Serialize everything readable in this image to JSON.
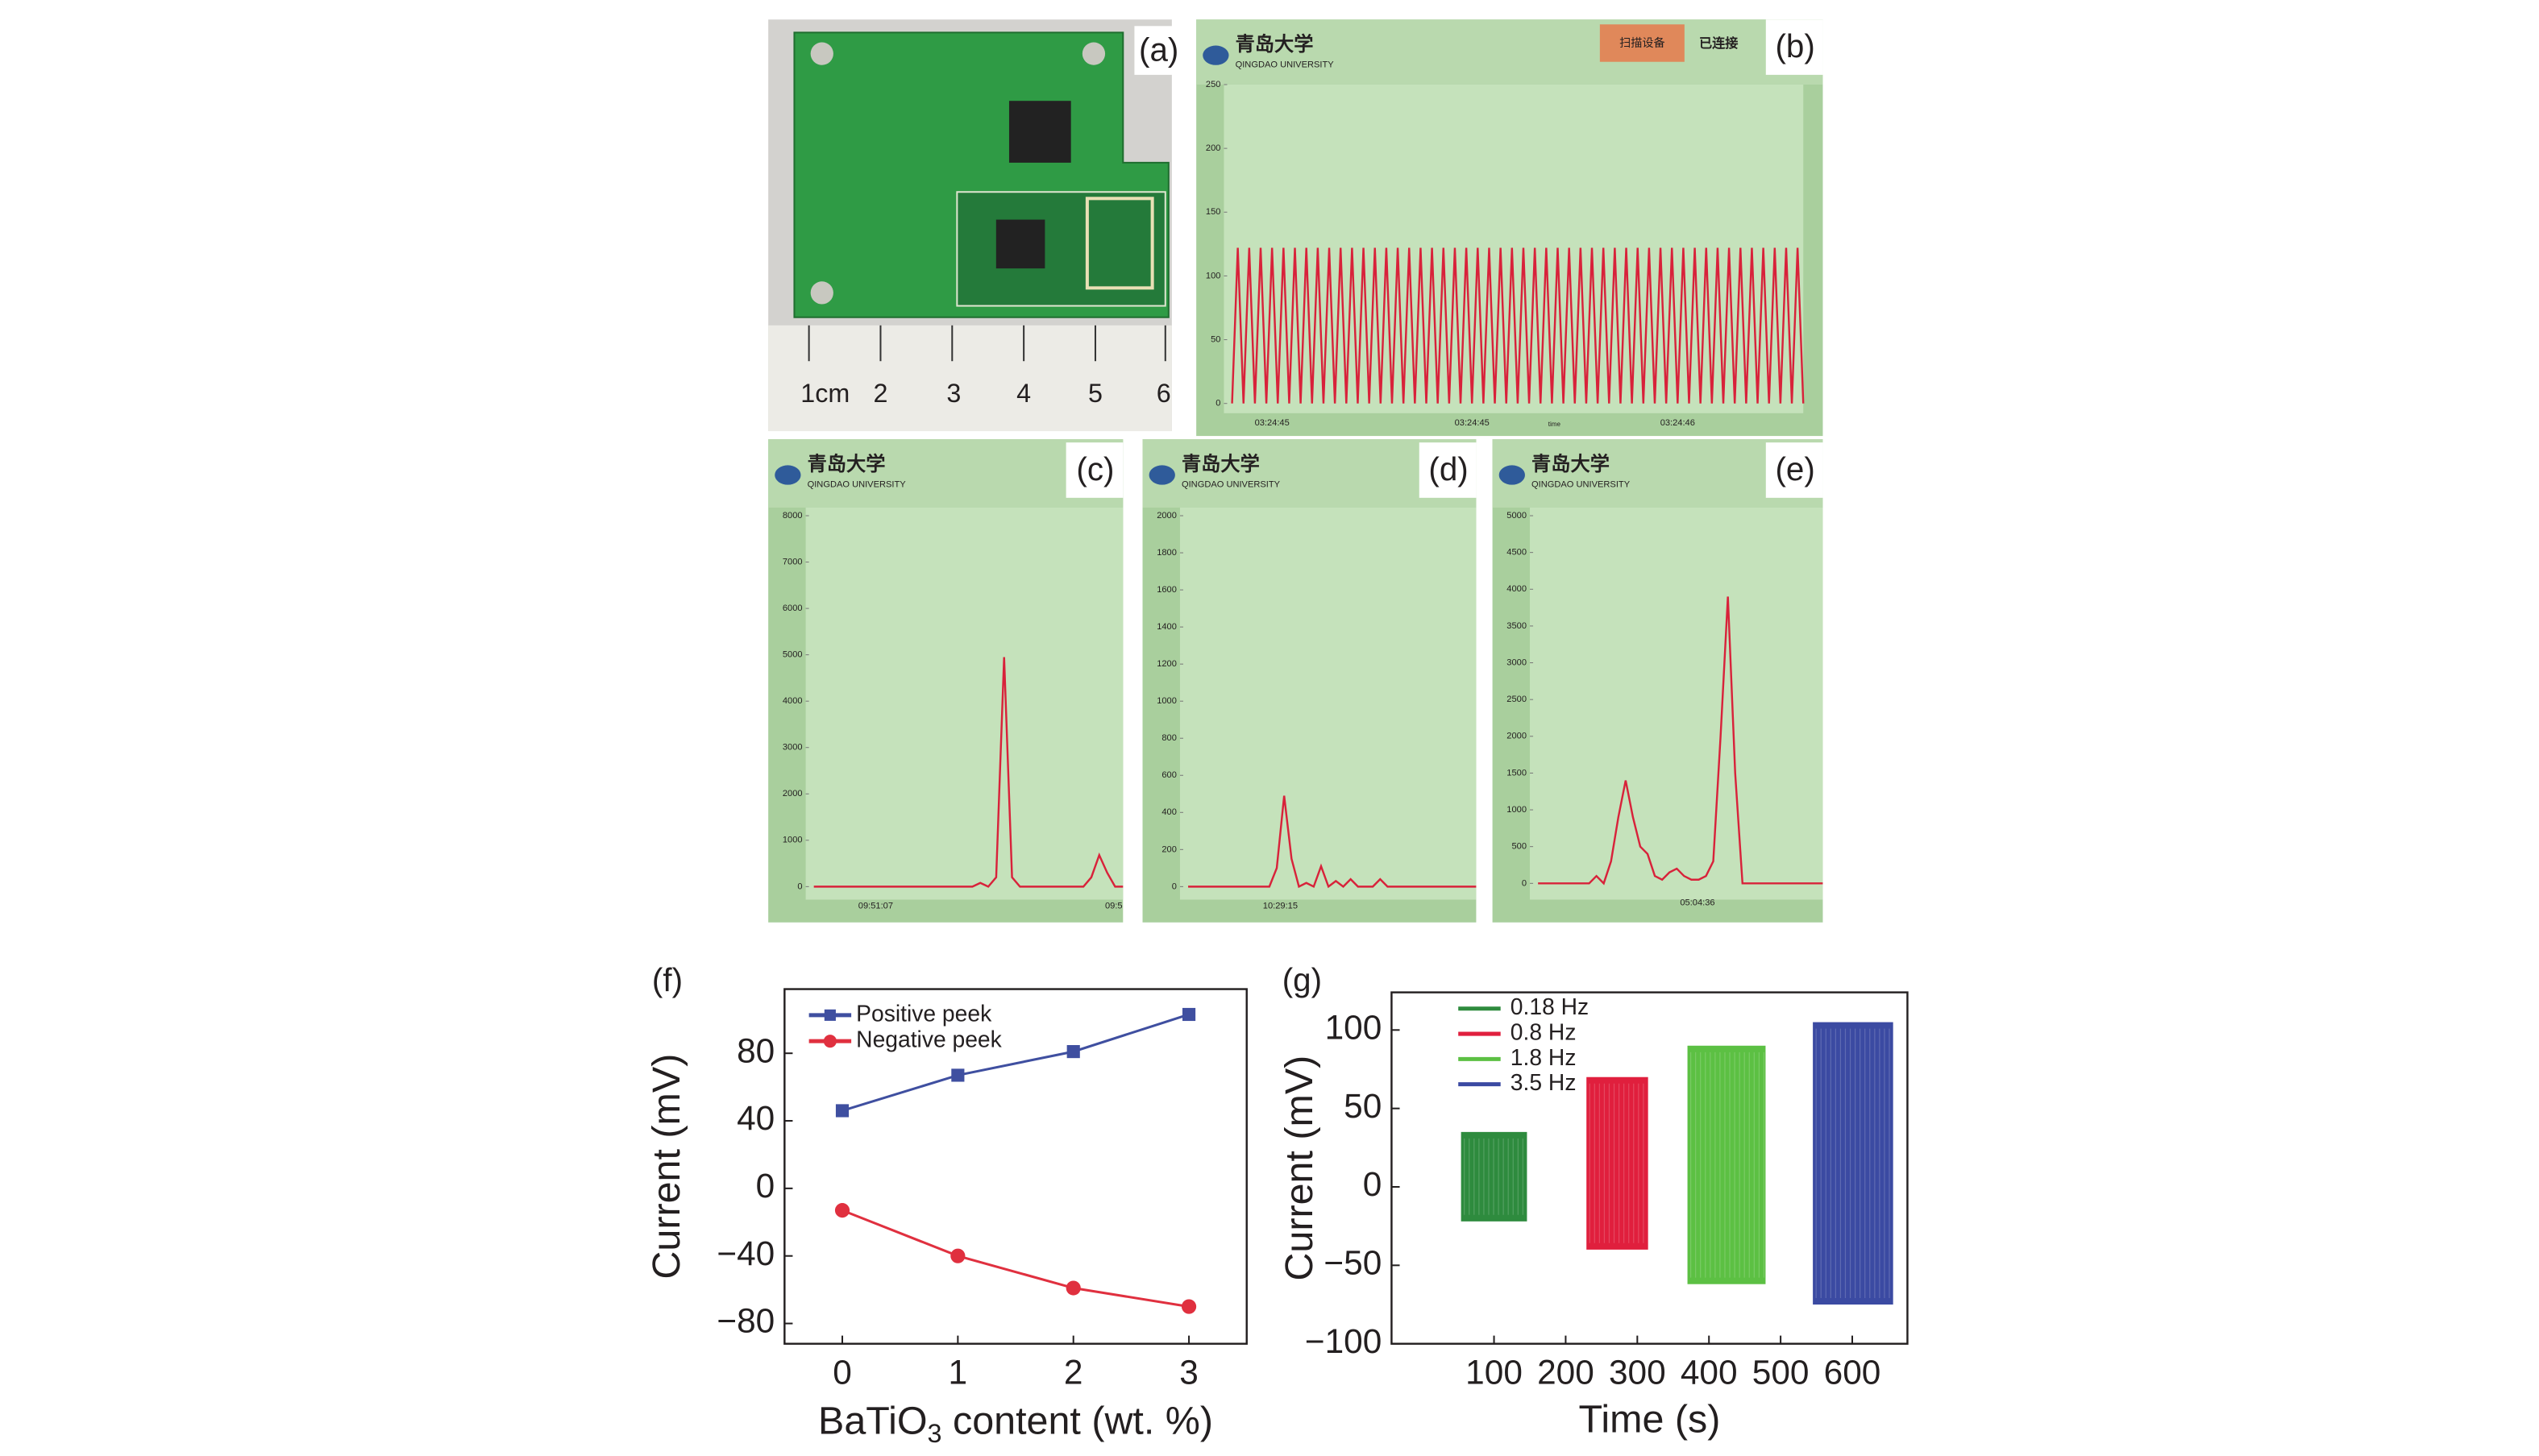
{
  "photo": {
    "panel_label": "(a)",
    "ruler_labels": [
      "1cm",
      "2",
      "3",
      "4",
      "5",
      "6"
    ]
  },
  "app": {
    "logo_cn": "青岛大学",
    "logo_en": "QINGDAO UNIVERSITY",
    "button": "扫描设备",
    "status": "已连接"
  },
  "chart_data": [
    {
      "type": "app-line",
      "panel_label": "(b)",
      "color": "#d8223a",
      "ylim": [
        0,
        250
      ],
      "yticks": [
        0,
        50,
        100,
        150,
        200,
        250
      ],
      "xlabels": [
        "03:24:45",
        "03:24:45",
        "03:24:46"
      ],
      "xlabel": "time",
      "values": [
        0,
        122,
        0,
        122,
        0,
        122,
        0,
        122,
        0,
        122,
        0,
        122,
        0,
        122,
        0,
        122,
        0,
        122,
        0,
        122,
        0,
        122,
        0,
        122,
        0,
        122,
        0,
        122,
        0,
        122,
        0,
        122,
        0,
        122,
        0,
        122,
        0,
        122,
        0,
        122,
        0,
        122,
        0,
        122,
        0,
        122,
        0,
        122,
        0,
        122,
        0,
        122,
        0,
        122,
        0,
        122,
        0,
        122,
        0,
        122,
        0,
        122,
        0,
        122,
        0,
        122,
        0,
        122,
        0,
        122,
        0,
        122,
        0,
        122,
        0,
        122,
        0,
        122,
        0,
        122,
        0,
        122,
        0,
        122,
        0,
        122,
        0,
        122,
        0,
        122,
        0,
        122,
        0,
        122,
        0,
        122,
        0,
        122,
        0,
        122,
        0
      ]
    },
    {
      "type": "app-line",
      "panel_label": "(c)",
      "color": "#d8223a",
      "ylim": [
        0,
        8000
      ],
      "yticks": [
        0,
        1000,
        2000,
        3000,
        4000,
        5000,
        6000,
        7000,
        8000
      ],
      "xlabels": [
        "09:51:07",
        "09:5"
      ],
      "values": [
        0,
        0,
        0,
        0,
        0,
        0,
        0,
        0,
        0,
        0,
        0,
        0,
        0,
        0,
        0,
        0,
        0,
        0,
        0,
        0,
        0,
        80,
        0,
        200,
        4950,
        200,
        0,
        0,
        0,
        0,
        0,
        0,
        0,
        0,
        0,
        200,
        680,
        300,
        0,
        0
      ]
    },
    {
      "type": "app-line",
      "panel_label": "(d)",
      "color": "#d8223a",
      "ylim": [
        0,
        2000
      ],
      "yticks": [
        0,
        200,
        400,
        600,
        800,
        1000,
        1200,
        1400,
        1600,
        1800,
        2000
      ],
      "xlabels": [
        "10:29:15"
      ],
      "values": [
        0,
        0,
        0,
        0,
        0,
        0,
        0,
        0,
        0,
        0,
        0,
        0,
        100,
        490,
        150,
        0,
        20,
        0,
        110,
        0,
        30,
        0,
        40,
        0,
        0,
        0,
        40,
        0,
        0,
        0,
        0,
        0,
        0,
        0,
        0,
        0,
        0,
        0,
        0,
        0
      ]
    },
    {
      "type": "app-line",
      "panel_label": "(e)",
      "color": "#d8223a",
      "ylim": [
        0,
        5000
      ],
      "yticks": [
        0,
        500,
        1000,
        1500,
        2000,
        2500,
        3000,
        3500,
        4000,
        4500,
        5000
      ],
      "xlabels": [
        "05:04:36"
      ],
      "values": [
        0,
        0,
        0,
        0,
        0,
        0,
        0,
        0,
        100,
        0,
        300,
        900,
        1400,
        900,
        500,
        400,
        100,
        50,
        150,
        200,
        100,
        50,
        50,
        100,
        300,
        2000,
        3900,
        1500,
        0,
        0,
        0,
        0,
        0,
        0,
        0,
        0,
        0,
        0,
        0,
        0
      ]
    },
    {
      "type": "line",
      "panel_label": "(f)",
      "x": [
        0,
        1,
        2,
        3
      ],
      "xlabel": {
        "text": "BaTiO",
        "subscript": "3",
        "rest": " content (wt. %)"
      },
      "ylabel": "Current (mV)",
      "xlim": [
        -0.5,
        3.5
      ],
      "xticks": [
        0,
        1,
        2,
        3
      ],
      "ylim": [
        -92,
        118
      ],
      "yticks": [
        {
          "value": -80,
          "label": "−80"
        },
        {
          "value": -40,
          "label": "−40"
        },
        0,
        40,
        80
      ],
      "series": [
        {
          "name": "Positive peek",
          "color": "#3f4fa0",
          "marker": "square",
          "values": [
            46,
            67,
            81,
            103
          ]
        },
        {
          "name": "Negative peek",
          "color": "#e0303f",
          "marker": "circle",
          "values": [
            -13,
            -40,
            -59,
            -70
          ]
        }
      ]
    },
    {
      "type": "band",
      "panel_label": "(g)",
      "xlabel": "Time (s)",
      "ylabel": "Current (mV)",
      "xlim": [
        -43,
        677
      ],
      "xticks": [
        100,
        200,
        300,
        400,
        500,
        600
      ],
      "ylim": [
        -100,
        124
      ],
      "yticks": [
        {
          "value": -100,
          "label": "−100"
        },
        {
          "value": -50,
          "label": "−50"
        },
        0,
        50,
        100
      ],
      "series": [
        {
          "name": "0.18 Hz",
          "color": "#2e8b3e",
          "x": [
            54,
            146
          ],
          "values": [
            -22,
            35
          ]
        },
        {
          "name": "0.8 Hz",
          "color": "#e01f3d",
          "x": [
            229,
            315
          ],
          "values": [
            -40,
            70
          ]
        },
        {
          "name": "1.8 Hz",
          "color": "#5cc043",
          "x": [
            370,
            479
          ],
          "values": [
            -62,
            90
          ]
        },
        {
          "name": "3.5 Hz",
          "color": "#3b4aa2",
          "x": [
            545,
            657
          ],
          "values": [
            -75,
            105
          ]
        }
      ]
    }
  ]
}
